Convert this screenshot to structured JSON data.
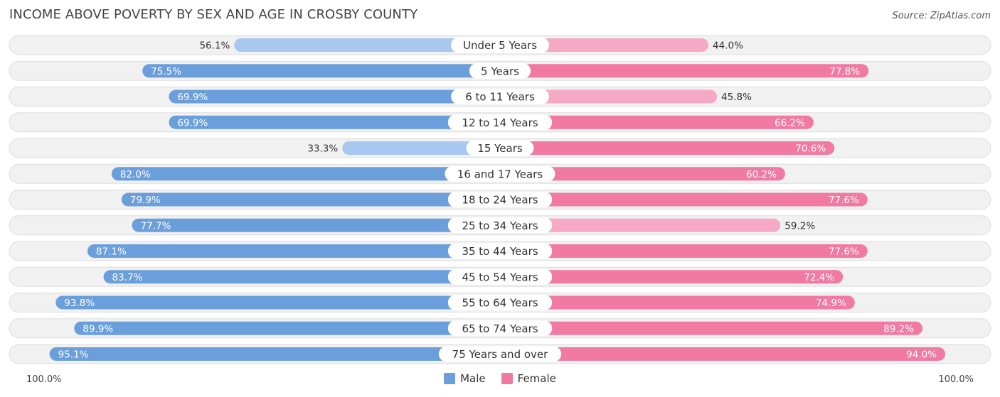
{
  "title": "INCOME ABOVE POVERTY BY SEX AND AGE IN CROSBY COUNTY",
  "source": "Source: ZipAtlas.com",
  "legend": {
    "male": "Male",
    "female": "Female"
  },
  "axis": {
    "left": "100.0%",
    "right": "100.0%"
  },
  "colors": {
    "male_strong": "#6a9fdc",
    "male_light": "#a9c8ef",
    "female_strong": "#f07aa2",
    "female_light": "#f6a9c4",
    "row_bg": "#f1f1f1",
    "row_border": "#dddddd"
  },
  "chart_data": {
    "type": "bar",
    "orientation": "horizontal-diverging",
    "title": "INCOME ABOVE POVERTY BY SEX AND AGE IN CROSBY COUNTY",
    "xlim": [
      0,
      100
    ],
    "unit": "%",
    "categories": [
      "Under 5 Years",
      "5 Years",
      "6 to 11 Years",
      "12 to 14 Years",
      "15 Years",
      "16 and 17 Years",
      "18 to 24 Years",
      "25 to 34 Years",
      "35 to 44 Years",
      "45 to 54 Years",
      "55 to 64 Years",
      "65 to 74 Years",
      "75 Years and over"
    ],
    "series": [
      {
        "name": "Male",
        "values": [
          56.1,
          75.5,
          69.9,
          69.9,
          33.3,
          82.0,
          79.9,
          77.7,
          87.1,
          83.7,
          93.8,
          89.9,
          95.1
        ],
        "labels": [
          "56.1%",
          "75.5%",
          "69.9%",
          "69.9%",
          "33.3%",
          "82.0%",
          "79.9%",
          "77.7%",
          "87.1%",
          "83.7%",
          "93.8%",
          "89.9%",
          "95.1%"
        ]
      },
      {
        "name": "Female",
        "values": [
          44.0,
          77.8,
          45.8,
          66.2,
          70.6,
          60.2,
          77.6,
          59.2,
          77.6,
          72.4,
          74.9,
          89.2,
          94.0
        ],
        "labels": [
          "44.0%",
          "77.8%",
          "45.8%",
          "66.2%",
          "70.6%",
          "60.2%",
          "77.6%",
          "59.2%",
          "77.6%",
          "72.4%",
          "74.9%",
          "89.2%",
          "94.0%"
        ]
      }
    ]
  }
}
